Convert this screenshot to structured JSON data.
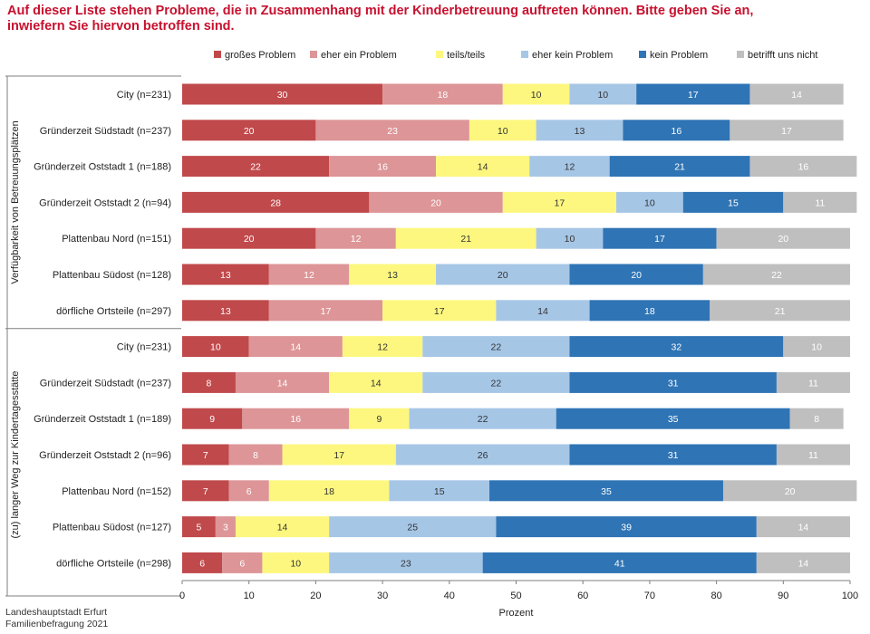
{
  "title": {
    "line1": "Auf dieser Liste stehen Probleme, die in Zusammenhang mit der Kinderbetreuung auftreten können. Bitte geben Sie an,",
    "line2": "inwiefern Sie hiervon betroffen sind."
  },
  "footer": {
    "line1": "Landeshauptstadt Erfurt",
    "line2": "Familienbefragung 2021"
  },
  "colors": [
    "#c0494b",
    "#dd9597",
    "#fdf77f",
    "#a6c6e6",
    "#2f74b5",
    "#bfbfbf"
  ],
  "chart_data": {
    "type": "bar",
    "orientation": "horizontal",
    "stacked": true,
    "xlabel": "Prozent",
    "xlim": [
      0,
      100
    ],
    "xticks": [
      0,
      10,
      20,
      30,
      40,
      50,
      60,
      70,
      80,
      90,
      100
    ],
    "legend_position": "top",
    "grid": false,
    "series": [
      "großes Problem",
      "eher ein Problem",
      "teils/teils",
      "eher kein Problem",
      "kein Problem",
      "betrifft uns nicht"
    ],
    "groups": [
      {
        "label": "Verfügbarkeit von Betreuungsplätzen",
        "rows": [
          {
            "label": "City (n=231)",
            "values": [
              30,
              18,
              10,
              10,
              17,
              14
            ]
          },
          {
            "label": "Gründerzeit Südstadt (n=237)",
            "values": [
              20,
              23,
              10,
              13,
              16,
              17
            ]
          },
          {
            "label": "Gründerzeit Oststadt 1 (n=188)",
            "values": [
              22,
              16,
              14,
              12,
              21,
              16
            ]
          },
          {
            "label": "Gründerzeit Oststadt 2 (n=94)",
            "values": [
              28,
              20,
              17,
              10,
              15,
              11
            ]
          },
          {
            "label": "Plattenbau Nord (n=151)",
            "values": [
              20,
              12,
              21,
              10,
              17,
              20
            ]
          },
          {
            "label": "Plattenbau Südost (n=128)",
            "values": [
              13,
              12,
              13,
              20,
              20,
              22
            ]
          },
          {
            "label": "dörfliche Ortsteile (n=297)",
            "values": [
              13,
              17,
              17,
              14,
              18,
              21
            ]
          }
        ]
      },
      {
        "label": "(zu) langer Weg zur Kindertagesstätte",
        "rows": [
          {
            "label": "City (n=231)",
            "values": [
              10,
              14,
              12,
              22,
              32,
              10
            ]
          },
          {
            "label": "Gründerzeit Südstadt (n=237)",
            "values": [
              8,
              14,
              14,
              22,
              31,
              11
            ]
          },
          {
            "label": "Gründerzeit Oststadt 1 (n=189)",
            "values": [
              9,
              16,
              9,
              22,
              35,
              8
            ]
          },
          {
            "label": "Gründerzeit Oststadt 2 (n=96)",
            "values": [
              7,
              8,
              17,
              26,
              31,
              11
            ]
          },
          {
            "label": "Plattenbau Nord (n=152)",
            "values": [
              7,
              6,
              18,
              15,
              35,
              20
            ]
          },
          {
            "label": "Plattenbau Südost (n=127)",
            "values": [
              5,
              3,
              14,
              25,
              39,
              14
            ]
          },
          {
            "label": "dörfliche Ortsteile (n=298)",
            "values": [
              6,
              6,
              10,
              23,
              41,
              14
            ]
          }
        ]
      }
    ]
  }
}
